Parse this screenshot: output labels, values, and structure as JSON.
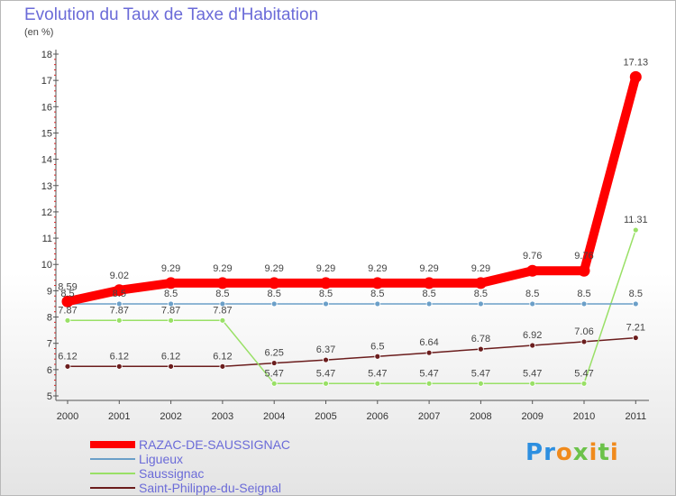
{
  "chart_data": {
    "type": "line",
    "title": "Evolution du Taux de Taxe d'Habitation",
    "subtitle": "(en %)",
    "xlabel": "",
    "ylabel": "",
    "x": [
      "2000",
      "2001",
      "2002",
      "2003",
      "2004",
      "2005",
      "2006",
      "2007",
      "2008",
      "2009",
      "2010",
      "2011"
    ],
    "yticks": [
      5,
      6,
      7,
      8,
      9,
      10,
      11,
      12,
      13,
      14,
      15,
      16,
      17,
      18
    ],
    "ylim": [
      5,
      18
    ],
    "grid": false,
    "legend_position": "bottom-left",
    "series": [
      {
        "name": "RAZAC-DE-SAUSSIGNAC",
        "color": "#ff0000",
        "values": [
          8.59,
          9.02,
          9.29,
          9.29,
          9.29,
          9.29,
          9.29,
          9.29,
          9.29,
          9.76,
          9.76,
          17.13
        ],
        "labels": [
          "8.59",
          "9.02",
          "9.29",
          "9.29",
          "9.29",
          "9.29",
          "9.29",
          "9.29",
          "9.29",
          "9.76",
          "9.76",
          "17.13"
        ]
      },
      {
        "name": "Ligueux",
        "color": "#6b9fc8",
        "values": [
          8.5,
          8.5,
          8.5,
          8.5,
          8.5,
          8.5,
          8.5,
          8.5,
          8.5,
          8.5,
          8.5,
          8.5
        ],
        "labels": [
          "8.5",
          "8.5",
          "8.5",
          "8.5",
          "8.5",
          "8.5",
          "8.5",
          "8.5",
          "8.5",
          "8.5",
          "8.5",
          "8.5"
        ]
      },
      {
        "name": "Saussignac",
        "color": "#99e066",
        "values": [
          7.87,
          7.87,
          7.87,
          7.87,
          5.47,
          5.47,
          5.47,
          5.47,
          5.47,
          5.47,
          5.47,
          11.31
        ],
        "labels": [
          "7.87",
          "7.87",
          "7.87",
          "7.87",
          "5.47",
          "5.47",
          "5.47",
          "5.47",
          "5.47",
          "5.47",
          "5.47",
          "11.31"
        ]
      },
      {
        "name": "Saint-Philippe-du-Seignal",
        "color": "#6b1d1d",
        "values": [
          6.12,
          6.12,
          6.12,
          6.12,
          6.25,
          6.37,
          6.5,
          6.64,
          6.78,
          6.92,
          7.06,
          7.21
        ],
        "labels": [
          "6.12",
          "6.12",
          "6.12",
          "6.12",
          "6.25",
          "6.37",
          "6.5",
          "6.64",
          "6.78",
          "6.92",
          "7.06",
          "7.21"
        ]
      }
    ]
  },
  "brand": {
    "logo_text": "Proxiti",
    "colors": [
      "#f08a1c",
      "#2d8fe0",
      "#6cc24a"
    ]
  }
}
